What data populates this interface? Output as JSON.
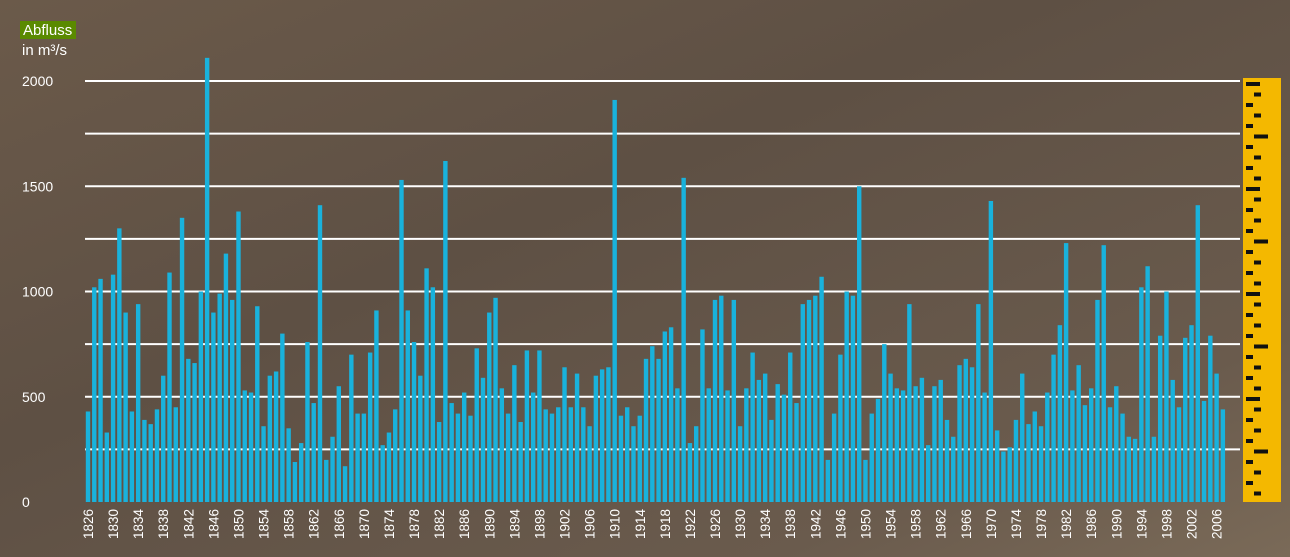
{
  "chart_data": {
    "type": "bar",
    "title": "Abfluss",
    "subtitle": "in m³/s",
    "categories": [
      "1826",
      null,
      null,
      null,
      "1830",
      null,
      null,
      null,
      "1834",
      null,
      null,
      null,
      "1838",
      null,
      null,
      null,
      "1842",
      null,
      null,
      null,
      "1846",
      null,
      null,
      null,
      "1850",
      null,
      null,
      null,
      "1854",
      null,
      null,
      null,
      "1858",
      null,
      null,
      null,
      "1862",
      null,
      null,
      null,
      "1866",
      null,
      null,
      null,
      "1870",
      null,
      null,
      null,
      "1874",
      null,
      null,
      null,
      "1878",
      null,
      null,
      null,
      "1882",
      null,
      null,
      null,
      "1886",
      null,
      null,
      null,
      "1890",
      null,
      null,
      null,
      "1894",
      null,
      null,
      null,
      "1898",
      null,
      null,
      null,
      "1902",
      null,
      null,
      null,
      "1906",
      null,
      null,
      null,
      "1910",
      null,
      null,
      null,
      "1914",
      null,
      null,
      null,
      "1918",
      null,
      null,
      null,
      "1922",
      null,
      null,
      null,
      "1926",
      null,
      null,
      null,
      "1930",
      null,
      null,
      null,
      "1934",
      null,
      null,
      null,
      "1938",
      null,
      null,
      null,
      "1942",
      null,
      null,
      null,
      "1946",
      null,
      null,
      null,
      "1950",
      null,
      null,
      null,
      "1954",
      null,
      null,
      null,
      "1958",
      null,
      null,
      null,
      "1962",
      null,
      null,
      null,
      "1966",
      null,
      null,
      null,
      "1970",
      null,
      null,
      null,
      "1974",
      null,
      null,
      null,
      "1978",
      null,
      null,
      null,
      "1982",
      null,
      null,
      null,
      "1986",
      null,
      null,
      null,
      "1990",
      null,
      null,
      null,
      "1994",
      null,
      null,
      null,
      "1998",
      null,
      null,
      null,
      "2002",
      null,
      null,
      null,
      "2006",
      null
    ],
    "values": [
      430,
      1020,
      1060,
      330,
      1080,
      1300,
      900,
      430,
      940,
      390,
      370,
      440,
      600,
      1090,
      450,
      1350,
      680,
      660,
      1000,
      2110,
      900,
      990,
      1180,
      960,
      1380,
      530,
      520,
      930,
      360,
      600,
      620,
      800,
      350,
      190,
      280,
      760,
      470,
      1410,
      200,
      310,
      550,
      170,
      700,
      420,
      420,
      710,
      910,
      270,
      330,
      440,
      1530,
      910,
      760,
      600,
      1110,
      1020,
      380,
      1620,
      470,
      420,
      520,
      410,
      730,
      590,
      900,
      970,
      540,
      420,
      650,
      380,
      720,
      520,
      720,
      440,
      420,
      450,
      640,
      450,
      610,
      450,
      360,
      600,
      630,
      640,
      1910,
      410,
      450,
      360,
      410,
      680,
      740,
      680,
      810,
      830,
      540,
      1540,
      280,
      360,
      820,
      540,
      960,
      980,
      530,
      960,
      360,
      540,
      710,
      580,
      610,
      390,
      560,
      510,
      710,
      470,
      940,
      960,
      980,
      1070,
      200,
      420,
      700,
      1000,
      980,
      1500,
      200,
      420,
      490,
      750,
      610,
      540,
      530,
      940,
      550,
      590,
      270,
      550,
      580,
      390,
      310,
      650,
      680,
      640,
      940,
      520,
      1430,
      340,
      240,
      260,
      390,
      610,
      370,
      430,
      360,
      520,
      700,
      840,
      1230,
      530,
      650,
      460,
      540,
      960,
      1220,
      450,
      550,
      420,
      310,
      300,
      1020,
      1120,
      310,
      790,
      1000,
      580,
      450,
      780,
      840,
      1410,
      480,
      790,
      610,
      440
    ],
    "color": "#19b2dc",
    "ylim": [
      0,
      2000
    ],
    "yticks": [
      0,
      500,
      1000,
      1500,
      2000
    ],
    "ygrid_minor": [
      250,
      750,
      1250,
      1750
    ],
    "grid": true
  }
}
